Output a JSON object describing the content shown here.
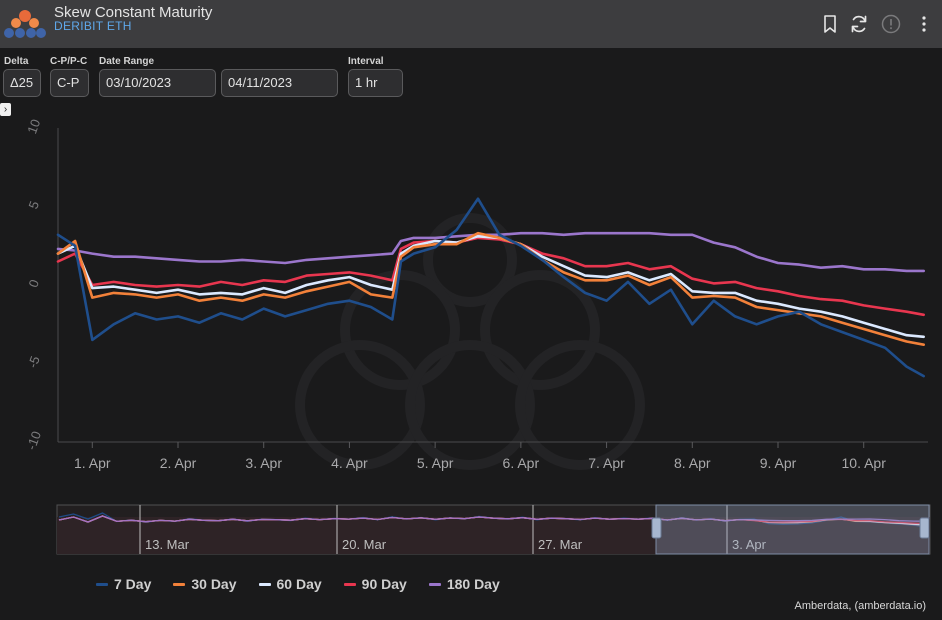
{
  "header": {
    "title": "Skew Constant Maturity",
    "subtitle": "DERIBIT ETH"
  },
  "controls": {
    "delta_label": "Delta",
    "delta_value": "Δ25",
    "cpc_label": "C-P/P-C",
    "cpc_value": "C-P",
    "date_label": "Date Range",
    "date_start": "03/10/2023",
    "date_end": "04/11/2023",
    "interval_label": "Interval",
    "interval_value": "1 hr"
  },
  "credit": "Amberdata, (amberdata.io)",
  "chart_data": {
    "type": "line",
    "title": "",
    "xlabel": "",
    "ylabel": "",
    "ylim": [
      -10,
      10
    ],
    "yticks": [
      10,
      5,
      0,
      -5,
      -10
    ],
    "ytick_labels": [
      "10",
      "5",
      "0",
      "-5",
      "-10"
    ],
    "x_unit": "days since 31 Mar 2023 00:00 (x axis labels are dates)",
    "xlim": [
      -0.4,
      9.75
    ],
    "xticks": [
      {
        "x": 0,
        "label": "1. Apr"
      },
      {
        "x": 1,
        "label": "2. Apr"
      },
      {
        "x": 2,
        "label": "3. Apr"
      },
      {
        "x": 3,
        "label": "4. Apr"
      },
      {
        "x": 4,
        "label": "5. Apr"
      },
      {
        "x": 5,
        "label": "6. Apr"
      },
      {
        "x": 6,
        "label": "7. Apr"
      },
      {
        "x": 7,
        "label": "8. Apr"
      },
      {
        "x": 8,
        "label": "9. Apr"
      },
      {
        "x": 9,
        "label": "10. Apr"
      }
    ],
    "grid": false,
    "legend_position": "bottom",
    "x": [
      -0.4,
      -0.2,
      0,
      0.25,
      0.5,
      0.75,
      1,
      1.25,
      1.5,
      1.75,
      2,
      2.25,
      2.5,
      2.75,
      3,
      3.25,
      3.5,
      3.6,
      3.75,
      4,
      4.25,
      4.5,
      4.75,
      5,
      5.25,
      5.5,
      5.75,
      6,
      6.25,
      6.5,
      6.75,
      7,
      7.25,
      7.5,
      7.75,
      8,
      8.25,
      8.5,
      8.75,
      9,
      9.25,
      9.5,
      9.7
    ],
    "series": [
      {
        "name": "7 Day",
        "color": "#1f4e8c",
        "values": [
          3.2,
          2.5,
          -3.5,
          -2.5,
          -1.8,
          -2.2,
          -2.0,
          -2.4,
          -1.8,
          -2.2,
          -1.5,
          -2.0,
          -1.6,
          -1.2,
          -1.0,
          -1.4,
          -2.2,
          1.5,
          2.0,
          2.4,
          3.5,
          5.5,
          3.2,
          2.5,
          1.6,
          0.5,
          -0.5,
          -1.0,
          0.2,
          -1.2,
          -0.3,
          -2.5,
          -1.0,
          -2.0,
          -2.5,
          -2.0,
          -1.7,
          -2.5,
          -3.0,
          -3.5,
          -4.0,
          -5.2,
          -5.8
        ]
      },
      {
        "name": "30 Day",
        "color": "#f2813a",
        "values": [
          2.0,
          2.8,
          -0.8,
          -0.5,
          -0.6,
          -0.8,
          -0.6,
          -1.0,
          -0.8,
          -1.0,
          -0.6,
          -0.8,
          -0.4,
          -0.1,
          0.2,
          -0.6,
          -0.8,
          1.8,
          2.4,
          2.6,
          2.6,
          3.3,
          3.0,
          2.6,
          1.6,
          0.8,
          0.3,
          0.3,
          0.6,
          0.0,
          0.5,
          -0.8,
          -0.7,
          -0.8,
          -1.4,
          -1.6,
          -1.8,
          -2.0,
          -2.4,
          -2.8,
          -3.2,
          -3.6,
          -3.8
        ]
      },
      {
        "name": "60 Day",
        "color": "#dbe9ff",
        "values": [
          2.0,
          2.5,
          -0.2,
          -0.1,
          -0.3,
          -0.5,
          -0.3,
          -0.6,
          -0.5,
          -0.6,
          -0.2,
          -0.5,
          0.0,
          0.3,
          0.5,
          0.0,
          -0.3,
          2.0,
          2.5,
          2.8,
          2.7,
          3.1,
          3.0,
          2.6,
          1.8,
          1.2,
          0.6,
          0.5,
          0.8,
          0.3,
          0.7,
          -0.4,
          -0.5,
          -0.5,
          -1.0,
          -1.2,
          -1.5,
          -1.7,
          -2.0,
          -2.4,
          -2.8,
          -3.2,
          -3.3
        ]
      },
      {
        "name": "90 Day",
        "color": "#e8364f",
        "values": [
          1.5,
          2.0,
          0.0,
          0.2,
          0.0,
          -0.1,
          0.0,
          -0.1,
          0.2,
          0.0,
          0.3,
          0.2,
          0.6,
          0.7,
          0.8,
          0.6,
          0.3,
          2.3,
          2.7,
          2.8,
          2.7,
          3.0,
          2.9,
          2.6,
          2.0,
          1.7,
          1.2,
          1.2,
          1.4,
          1.0,
          1.2,
          0.4,
          0.1,
          0.2,
          -0.2,
          -0.4,
          -0.7,
          -0.9,
          -1.0,
          -1.3,
          -1.5,
          -1.7,
          -1.9
        ]
      },
      {
        "name": "180 Day",
        "color": "#9b76cc",
        "values": [
          2.3,
          2.2,
          2.0,
          1.8,
          1.8,
          1.7,
          1.6,
          1.5,
          1.5,
          1.6,
          1.5,
          1.4,
          1.6,
          1.7,
          1.8,
          1.9,
          2.0,
          2.8,
          3.0,
          3.0,
          3.1,
          3.2,
          3.2,
          3.3,
          3.3,
          3.2,
          3.3,
          3.3,
          3.3,
          3.3,
          3.2,
          3.2,
          2.7,
          2.4,
          1.8,
          1.4,
          1.3,
          1.1,
          1.2,
          1.0,
          1.0,
          0.9,
          0.9
        ]
      }
    ],
    "navigator": {
      "tick_labels": [
        "13. Mar",
        "20. Mar",
        "27. Mar",
        "3. Apr"
      ]
    }
  }
}
